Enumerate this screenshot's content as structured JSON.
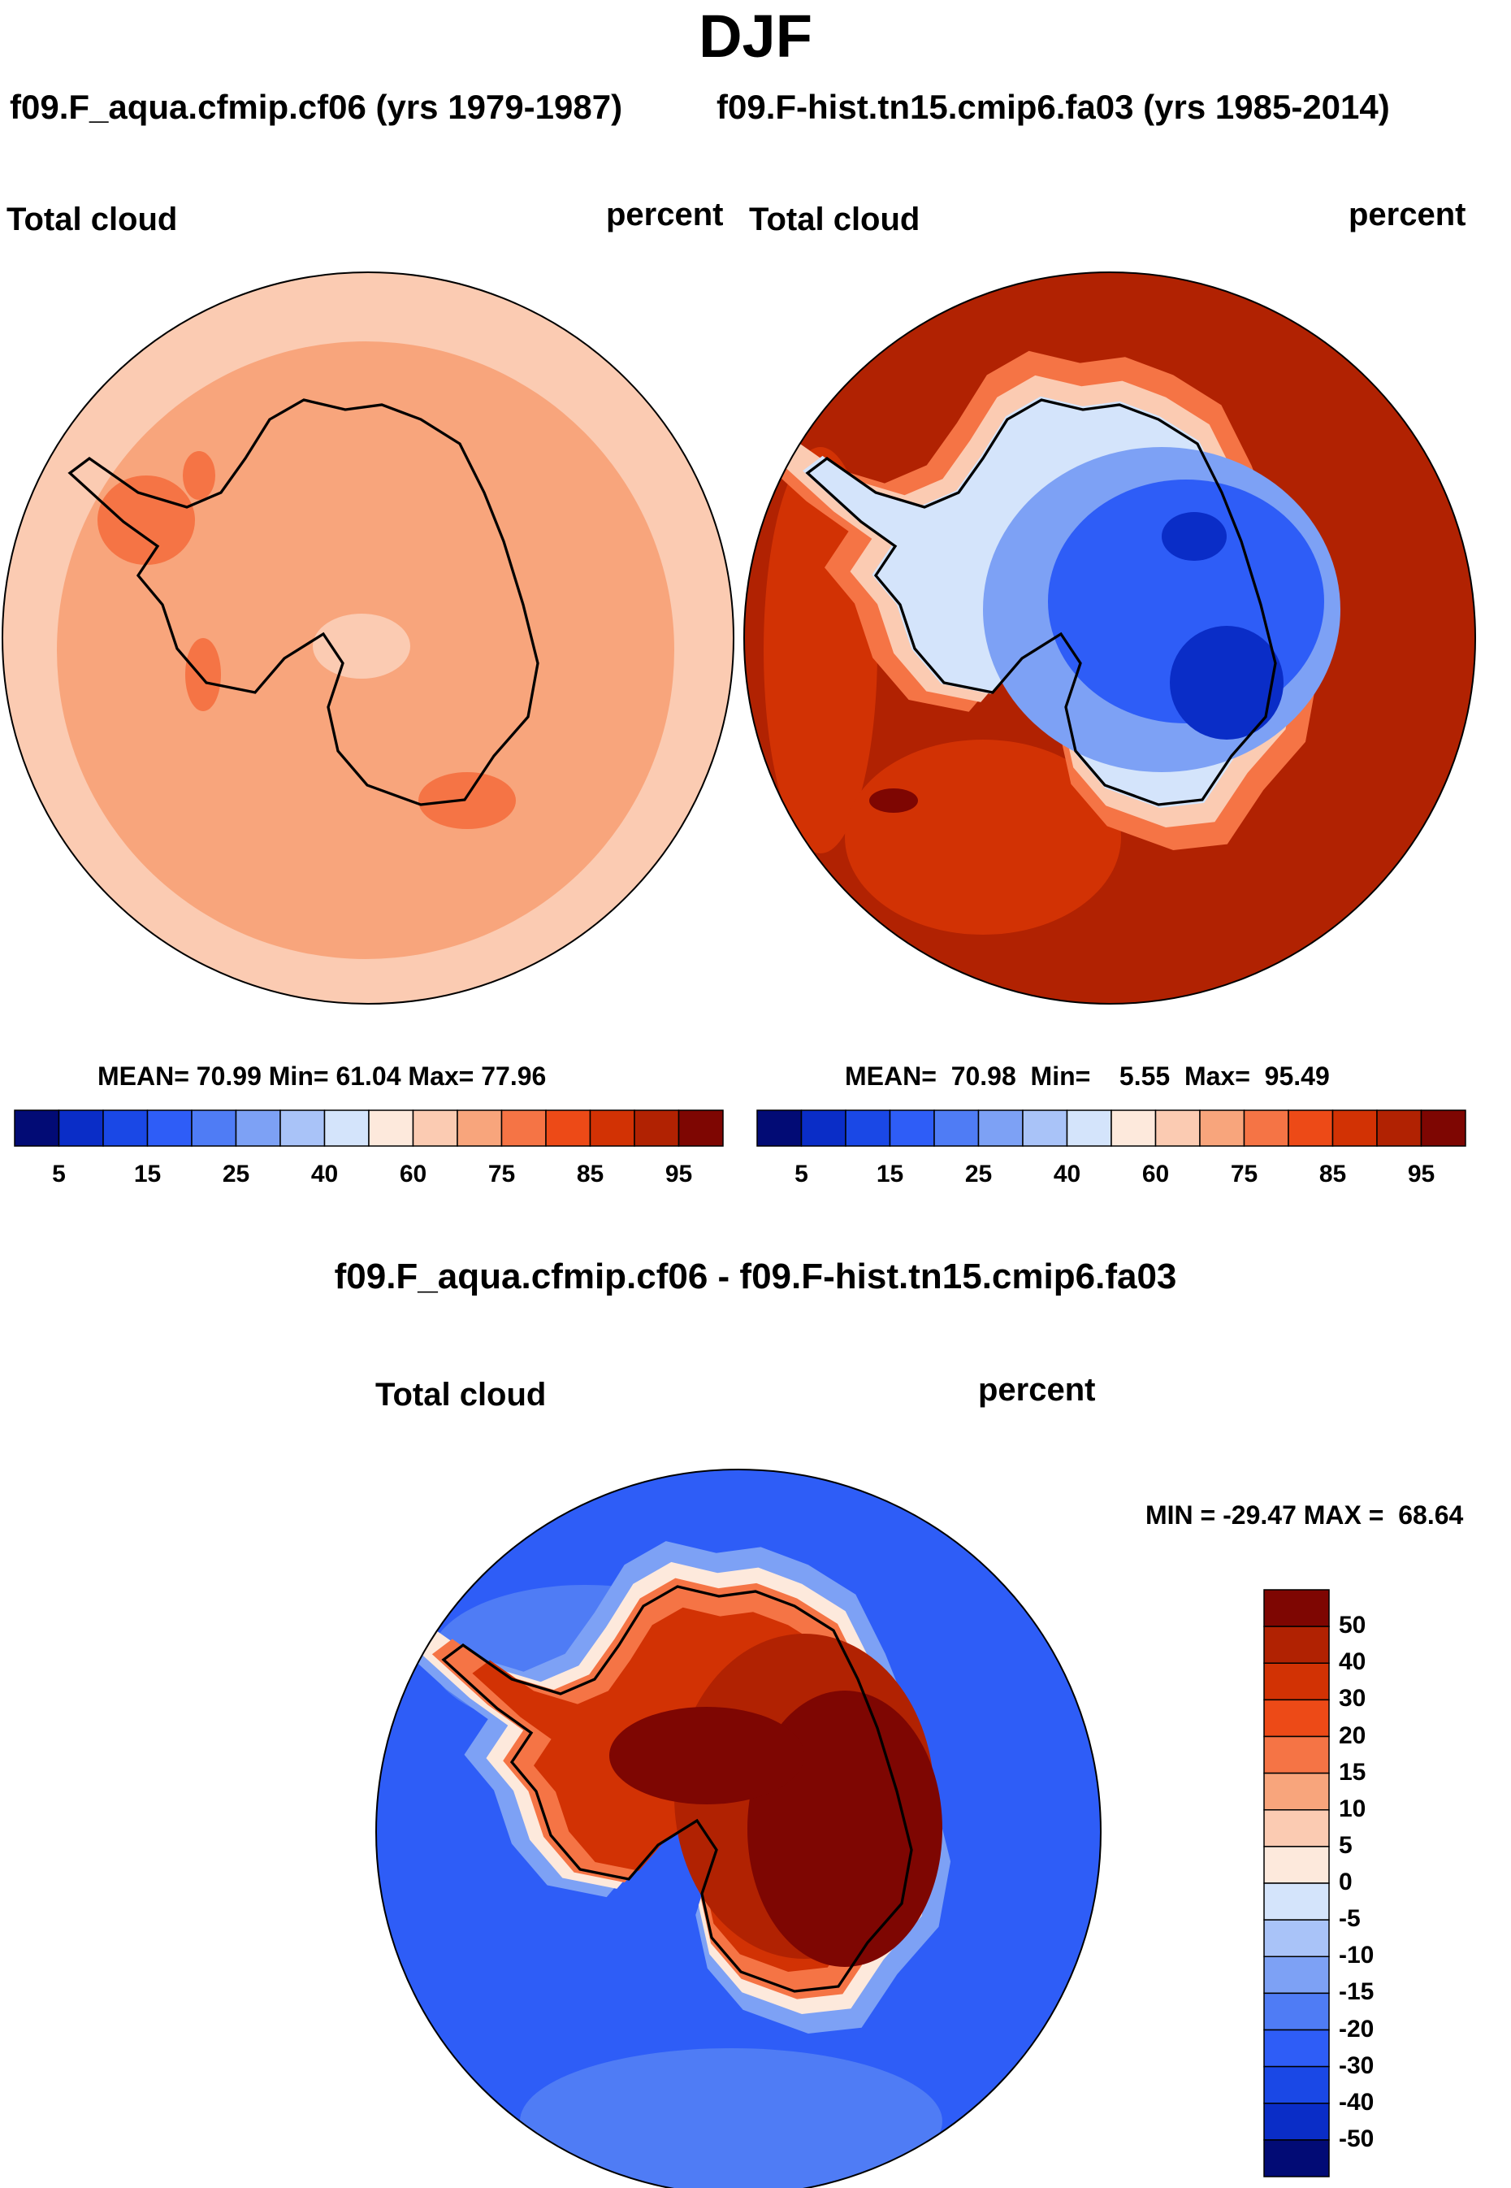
{
  "title": "DJF",
  "panels": {
    "left": {
      "case_title": "f09.F_aqua.cfmip.cf06 (yrs 1979-1987)",
      "variable": "Total cloud",
      "units": "percent",
      "stats": "MEAN=  70.99  Min=  61.04  Max=  77.96"
    },
    "right": {
      "case_title": "f09.F-hist.tn15.cmip6.fa03 (yrs 1985-2014)",
      "variable": "Total cloud",
      "units": "percent",
      "stats": "MEAN=  70.98  Min=    5.55  Max=  95.49"
    },
    "diff": {
      "case_title": "f09.F_aqua.cfmip.cf06 - f09.F-hist.tn15.cmip6.fa03",
      "variable": "Total cloud",
      "units": "percent",
      "stats": "MIN = -29.47 MAX =  68.64"
    }
  },
  "chart_data": [
    {
      "type": "heatmap",
      "projection": "south-polar-stereographic",
      "title": "f09.F_aqua.cfmip.cf06 (yrs 1979-1987)",
      "variable": "Total cloud",
      "units": "percent",
      "season": "DJF",
      "mean": 70.99,
      "min": 61.04,
      "max": 77.96,
      "colorbar_levels": [
        5,
        10,
        15,
        20,
        25,
        30,
        40,
        50,
        60,
        70,
        75,
        80,
        85,
        90,
        95
      ],
      "colorbar_tick_labels": [
        "5",
        "15",
        "25",
        "40",
        "60",
        "75",
        "85",
        "95"
      ],
      "colors": [
        "#020b75",
        "#0a2dc7",
        "#1a48e6",
        "#2e5df7",
        "#4f7cf5",
        "#7da1f5",
        "#a9c3f8",
        "#d4e4fb",
        "#fde9dc",
        "#fbcbb2",
        "#f8a57c",
        "#f57445",
        "#ed4a17",
        "#d23204",
        "#b12202",
        "#7e0602"
      ]
    },
    {
      "type": "heatmap",
      "projection": "south-polar-stereographic",
      "title": "f09.F-hist.tn15.cmip6.fa03 (yrs 1985-2014)",
      "variable": "Total cloud",
      "units": "percent",
      "season": "DJF",
      "mean": 70.98,
      "min": 5.55,
      "max": 95.49,
      "colorbar_levels": [
        5,
        10,
        15,
        20,
        25,
        30,
        40,
        50,
        60,
        70,
        75,
        80,
        85,
        90,
        95
      ],
      "colorbar_tick_labels": [
        "5",
        "15",
        "25",
        "40",
        "60",
        "75",
        "85",
        "95"
      ],
      "colors": [
        "#020b75",
        "#0a2dc7",
        "#1a48e6",
        "#2e5df7",
        "#4f7cf5",
        "#7da1f5",
        "#a9c3f8",
        "#d4e4fb",
        "#fde9dc",
        "#fbcbb2",
        "#f8a57c",
        "#f57445",
        "#ed4a17",
        "#d23204",
        "#b12202",
        "#7e0602"
      ]
    },
    {
      "type": "heatmap",
      "projection": "south-polar-stereographic",
      "title": "f09.F_aqua.cfmip.cf06 - f09.F-hist.tn15.cmip6.fa03",
      "variable": "Total cloud",
      "units": "percent",
      "season": "DJF",
      "min": -29.47,
      "max": 68.64,
      "colorbar_levels": [
        -50,
        -40,
        -30,
        -20,
        -15,
        -10,
        -5,
        0,
        5,
        10,
        15,
        20,
        30,
        40,
        50
      ],
      "colorbar_tick_labels": [
        "50",
        "40",
        "30",
        "20",
        "15",
        "10",
        "5",
        "0",
        "-5",
        "-10",
        "-15",
        "-20",
        "-30",
        "-40",
        "-50"
      ],
      "colors": [
        "#020b75",
        "#0a2dc7",
        "#1a48e6",
        "#2e5df7",
        "#4f7cf5",
        "#7da1f5",
        "#a9c3f8",
        "#d4e4fb",
        "#fde9dc",
        "#fbcbb2",
        "#f8a57c",
        "#f57445",
        "#ed4a17",
        "#d23204",
        "#b12202",
        "#7e0602"
      ]
    }
  ]
}
